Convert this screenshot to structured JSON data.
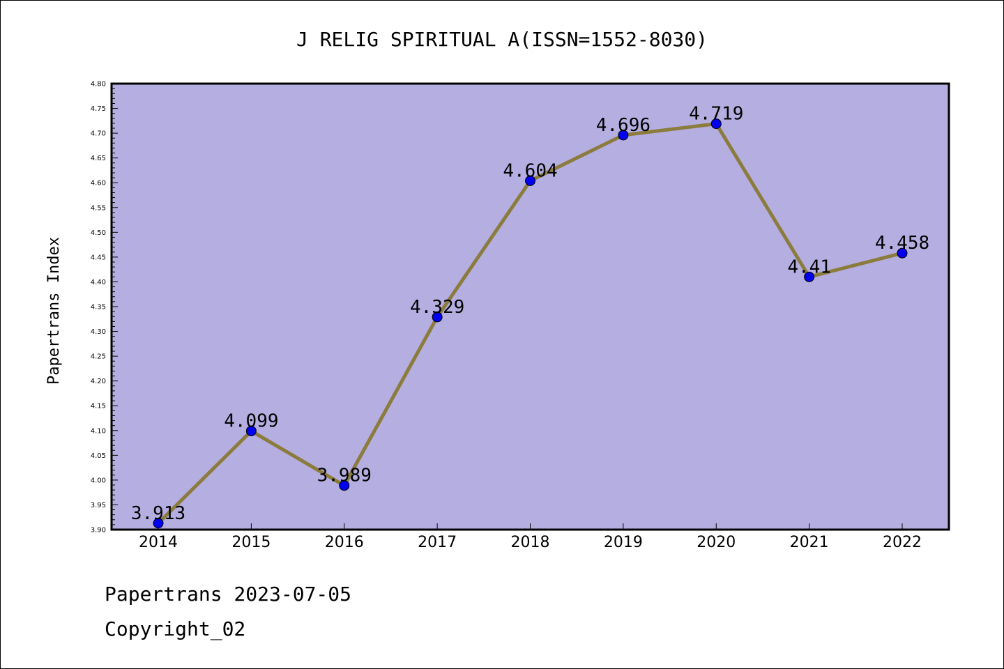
{
  "chart_data": {
    "type": "line",
    "title": "J RELIG SPIRITUAL A(ISSN=1552-8030)",
    "xlabel": "",
    "ylabel": "Papertrans Index",
    "categories": [
      "2014",
      "2015",
      "2016",
      "2017",
      "2018",
      "2019",
      "2020",
      "2021",
      "2022"
    ],
    "values": [
      3.913,
      4.099,
      3.989,
      4.329,
      4.604,
      4.696,
      4.719,
      4.41,
      4.458
    ],
    "data_labels": [
      "3.913",
      "4.099",
      "3.989",
      "4.329",
      "4.604",
      "4.696",
      "4.719",
      "4.41",
      "4.458"
    ],
    "ylim": [
      3.9,
      4.8
    ],
    "yticks": [
      "3.90",
      "3.95",
      "4.00",
      "4.05",
      "4.10",
      "4.15",
      "4.20",
      "4.25",
      "4.30",
      "4.35",
      "4.40",
      "4.45",
      "4.50",
      "4.55",
      "4.60",
      "4.65",
      "4.70",
      "4.75",
      "4.80"
    ],
    "grid": false,
    "legend": "none",
    "colors": {
      "plot_background": "#b4aee1",
      "line": "#8b7b3c",
      "marker": "#0000ee",
      "axis": "#000000"
    }
  },
  "footer": {
    "date_line": "Papertrans 2023-07-05",
    "copyright": "Copyright_02"
  }
}
